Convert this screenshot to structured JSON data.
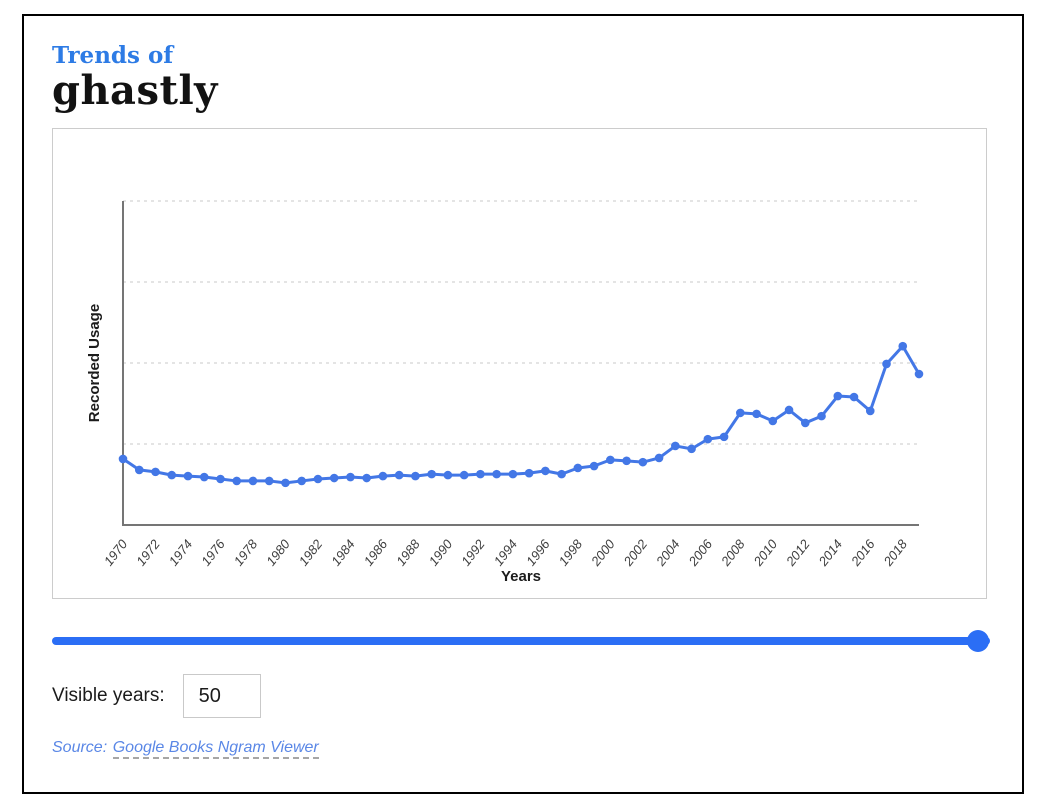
{
  "header": {
    "supertitle": "Trends of",
    "word": "ghastly"
  },
  "chart_data": {
    "type": "line",
    "title": "",
    "xlabel": "Years",
    "ylabel": "Recorded Usage",
    "x": [
      1970,
      1971,
      1972,
      1973,
      1974,
      1975,
      1976,
      1977,
      1978,
      1979,
      1980,
      1981,
      1982,
      1983,
      1984,
      1985,
      1986,
      1987,
      1988,
      1989,
      1990,
      1991,
      1992,
      1993,
      1994,
      1995,
      1996,
      1997,
      1998,
      1999,
      2000,
      2001,
      2002,
      2003,
      2004,
      2005,
      2006,
      2007,
      2008,
      2009,
      2010,
      2011,
      2012,
      2013,
      2014,
      2015,
      2016,
      2017,
      2018,
      2019
    ],
    "values": [
      20.4,
      17.0,
      16.4,
      15.4,
      15.1,
      14.8,
      14.2,
      13.6,
      13.6,
      13.6,
      13.0,
      13.6,
      14.2,
      14.5,
      14.8,
      14.5,
      15.1,
      15.4,
      15.1,
      15.7,
      15.4,
      15.4,
      15.7,
      15.7,
      15.7,
      16.0,
      16.7,
      15.7,
      17.6,
      18.2,
      20.1,
      19.8,
      19.4,
      20.7,
      24.4,
      23.5,
      26.5,
      27.2,
      34.6,
      34.3,
      32.1,
      35.5,
      31.5,
      33.6,
      39.8,
      39.5,
      35.2,
      49.7,
      55.2,
      46.6
    ],
    "x_tick_labels": [
      "1970",
      "1972",
      "1974",
      "1976",
      "1978",
      "1980",
      "1982",
      "1984",
      "1986",
      "1988",
      "1990",
      "1992",
      "1994",
      "1996",
      "1998",
      "2000",
      "2002",
      "2004",
      "2006",
      "2008",
      "2010",
      "2012",
      "2014",
      "2016",
      "2018"
    ],
    "ylim": [
      0,
      100
    ],
    "y_gridlines": [
      25,
      50,
      75,
      100
    ],
    "y_ticks_labeled": false,
    "units": "relative recorded usage (y axis unlabeled; values as % of plot height)",
    "grid": "horizontal dashed",
    "legend": "none",
    "series_name": "ghastly"
  },
  "slider": {
    "position": "max"
  },
  "controls": {
    "visible_years_label": "Visible years:",
    "visible_years_value": "50"
  },
  "source": {
    "prefix": "Source:",
    "link_text": "Google Books Ngram Viewer"
  },
  "colors": {
    "title_blue": "#2d7be5",
    "line_blue": "#4377e6",
    "slider_blue": "#2b6ef5",
    "link_blue": "#5a87e6",
    "axis_gray": "#757575",
    "gridline_gray": "#e4e4e4"
  }
}
